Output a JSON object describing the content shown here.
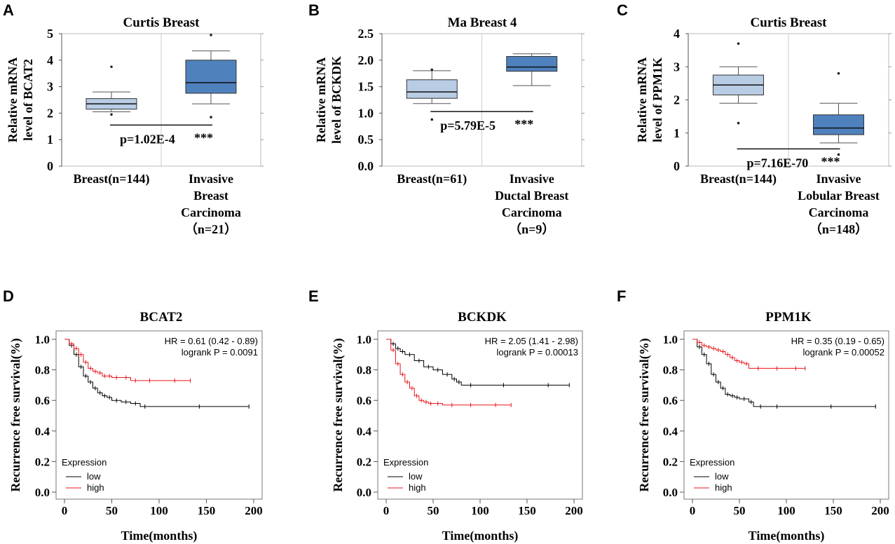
{
  "colors": {
    "light_box": "#b8cce4",
    "dark_box": "#4f81bd",
    "low": "#000000",
    "high": "#e8161b",
    "frame": "#666666"
  },
  "chart_data": [
    {
      "panel": "A",
      "type": "box",
      "title": "Curtis  Breast",
      "ylabel_line1": "Relative mRNA",
      "ylabel_line2": "level of BCAT2",
      "ylim": [
        0,
        5
      ],
      "yticks": [
        "0",
        "1",
        "2",
        "3",
        "4",
        "5"
      ],
      "groups": [
        {
          "label_lines": [
            "Breast(n=144)"
          ],
          "min": 2.05,
          "q1": 2.15,
          "median": 2.35,
          "q3": 2.55,
          "max": 2.8,
          "outliers": [
            3.75,
            1.95
          ],
          "color": "#b8cce4"
        },
        {
          "label_lines": [
            "Invasive",
            "Breast",
            "Carcinoma",
            "（n=21）"
          ],
          "min": 2.35,
          "q1": 2.75,
          "median": 3.15,
          "q3": 4.0,
          "max": 4.35,
          "outliers": [
            4.95,
            1.85
          ],
          "color": "#4f81bd"
        }
      ],
      "sig_y": 1.55,
      "pvalue": "p=1.02E-4",
      "stars": "***"
    },
    {
      "panel": "B",
      "type": "box",
      "title": "Ma Breast 4",
      "ylabel_line1": "Relative mRNA",
      "ylabel_line2": "level of BCKDK",
      "ylim": [
        0,
        2.5
      ],
      "yticks": [
        "0.0",
        "0.5",
        "1.0",
        "1.5",
        "2.0",
        "2.5"
      ],
      "groups": [
        {
          "label_lines": [
            "Breast(n=61)"
          ],
          "min": 1.18,
          "q1": 1.28,
          "median": 1.4,
          "q3": 1.63,
          "max": 1.8,
          "outliers": [
            1.82,
            0.88
          ],
          "color": "#b8cce4"
        },
        {
          "label_lines": [
            "Invasive",
            "Ductal Breast",
            "Carcinoma",
            "（n=9）"
          ],
          "min": 1.52,
          "q1": 1.79,
          "median": 1.87,
          "q3": 2.07,
          "max": 2.12,
          "outliers": [],
          "color": "#4f81bd"
        }
      ],
      "sig_y": 1.03,
      "pvalue": "p=5.79E-5",
      "stars": "***"
    },
    {
      "panel": "C",
      "type": "box",
      "title": "Curtis  Breast",
      "ylabel_line1": "Relative mRNA",
      "ylabel_line2": "level of PPM1K",
      "ylim": [
        0,
        4
      ],
      "yticks": [
        "0",
        "1",
        "2",
        "3",
        "4"
      ],
      "groups": [
        {
          "label_lines": [
            "Breast(n=144)"
          ],
          "min": 1.9,
          "q1": 2.15,
          "median": 2.45,
          "q3": 2.75,
          "max": 3.0,
          "outliers": [
            3.7,
            1.3
          ],
          "color": "#b8cce4"
        },
        {
          "label_lines": [
            "Invasive",
            "Lobular Breast",
            "Carcinoma",
            "（n=148）"
          ],
          "min": 0.7,
          "q1": 0.95,
          "median": 1.15,
          "q3": 1.55,
          "max": 1.9,
          "outliers": [
            2.8,
            0.35
          ],
          "color": "#4f81bd"
        }
      ],
      "sig_y": 0.52,
      "pvalue": "p=7.16E-70",
      "stars": "***"
    },
    {
      "panel": "D",
      "type": "line",
      "title": "BCAT2",
      "xlabel": "Time(months)",
      "ylabel": "Recurrence  free survival(%)",
      "xlim": [
        0,
        200
      ],
      "ylim": [
        0,
        1
      ],
      "xticks": [
        "0",
        "50",
        "100",
        "150",
        "200"
      ],
      "yticks": [
        "0.0",
        "0.2",
        "0.4",
        "0.6",
        "0.8",
        "1.0"
      ],
      "hr": "HR = 0.61 (0.42 - 0.89)",
      "logrank": "logrank P = 0.0091",
      "legend_title": "Expression",
      "legend_low": "low",
      "legend_high": "high",
      "series": [
        {
          "name": "low",
          "x": [
            0,
            5,
            10,
            15,
            20,
            25,
            30,
            35,
            40,
            45,
            50,
            60,
            70,
            80,
            90,
            195
          ],
          "y": [
            1.0,
            0.96,
            0.9,
            0.82,
            0.76,
            0.72,
            0.68,
            0.65,
            0.63,
            0.62,
            0.6,
            0.59,
            0.58,
            0.56,
            0.56,
            0.56
          ]
        },
        {
          "name": "high",
          "x": [
            0,
            5,
            10,
            15,
            20,
            25,
            30,
            35,
            40,
            45,
            50,
            60,
            70,
            80,
            100,
            133
          ],
          "y": [
            1.0,
            0.97,
            0.94,
            0.9,
            0.85,
            0.81,
            0.79,
            0.78,
            0.76,
            0.76,
            0.75,
            0.75,
            0.73,
            0.73,
            0.73,
            0.73
          ]
        }
      ]
    },
    {
      "panel": "E",
      "type": "line",
      "title": "BCKDK",
      "xlabel": "Time(months)",
      "ylabel": "Recurrence  free survival(%)",
      "xlim": [
        0,
        200
      ],
      "ylim": [
        0,
        1
      ],
      "xticks": [
        "0",
        "50",
        "100",
        "150",
        "200"
      ],
      "yticks": [
        "0.0",
        "0.2",
        "0.4",
        "0.6",
        "0.8",
        "1.0"
      ],
      "hr": "HR = 2.05 (1.41 - 2.98)",
      "logrank": "logrank P = 0.00013",
      "legend_title": "Expression",
      "legend_low": "low",
      "legend_high": "high",
      "series": [
        {
          "name": "low",
          "x": [
            0,
            5,
            10,
            15,
            20,
            30,
            40,
            50,
            60,
            70,
            75,
            80,
            100,
            150,
            195
          ],
          "y": [
            1.0,
            0.97,
            0.94,
            0.92,
            0.9,
            0.86,
            0.82,
            0.8,
            0.77,
            0.74,
            0.72,
            0.7,
            0.7,
            0.7,
            0.7
          ]
        },
        {
          "name": "high",
          "x": [
            0,
            5,
            10,
            15,
            20,
            25,
            30,
            35,
            40,
            45,
            50,
            60,
            80,
            100,
            133
          ],
          "y": [
            1.0,
            0.93,
            0.84,
            0.77,
            0.72,
            0.68,
            0.63,
            0.6,
            0.59,
            0.58,
            0.58,
            0.57,
            0.57,
            0.57,
            0.57
          ]
        }
      ]
    },
    {
      "panel": "F",
      "type": "line",
      "title": "PPM1K",
      "xlabel": "Time(months)",
      "ylabel": "Recurrence  free survival(%)",
      "xlim": [
        0,
        200
      ],
      "ylim": [
        0,
        1
      ],
      "xticks": [
        "0",
        "50",
        "100",
        "150",
        "200"
      ],
      "yticks": [
        "0.0",
        "0.2",
        "0.4",
        "0.6",
        "0.8",
        "1.0"
      ],
      "hr": "HR = 0.35 (0.19 - 0.65)",
      "logrank": "logrank P = 0.00052",
      "legend_title": "Expression",
      "legend_low": "low",
      "legend_high": "high",
      "series": [
        {
          "name": "low",
          "x": [
            0,
            5,
            10,
            15,
            20,
            25,
            30,
            35,
            40,
            45,
            50,
            60,
            65,
            80,
            100,
            195
          ],
          "y": [
            1.0,
            0.95,
            0.9,
            0.84,
            0.77,
            0.72,
            0.68,
            0.64,
            0.63,
            0.62,
            0.61,
            0.59,
            0.56,
            0.56,
            0.56,
            0.56
          ]
        },
        {
          "name": "high",
          "x": [
            0,
            5,
            10,
            15,
            20,
            25,
            30,
            35,
            40,
            45,
            50,
            55,
            60,
            80,
            100,
            120
          ],
          "y": [
            1.0,
            0.98,
            0.96,
            0.95,
            0.94,
            0.93,
            0.92,
            0.9,
            0.88,
            0.86,
            0.85,
            0.84,
            0.81,
            0.81,
            0.81,
            0.81
          ]
        }
      ]
    }
  ]
}
